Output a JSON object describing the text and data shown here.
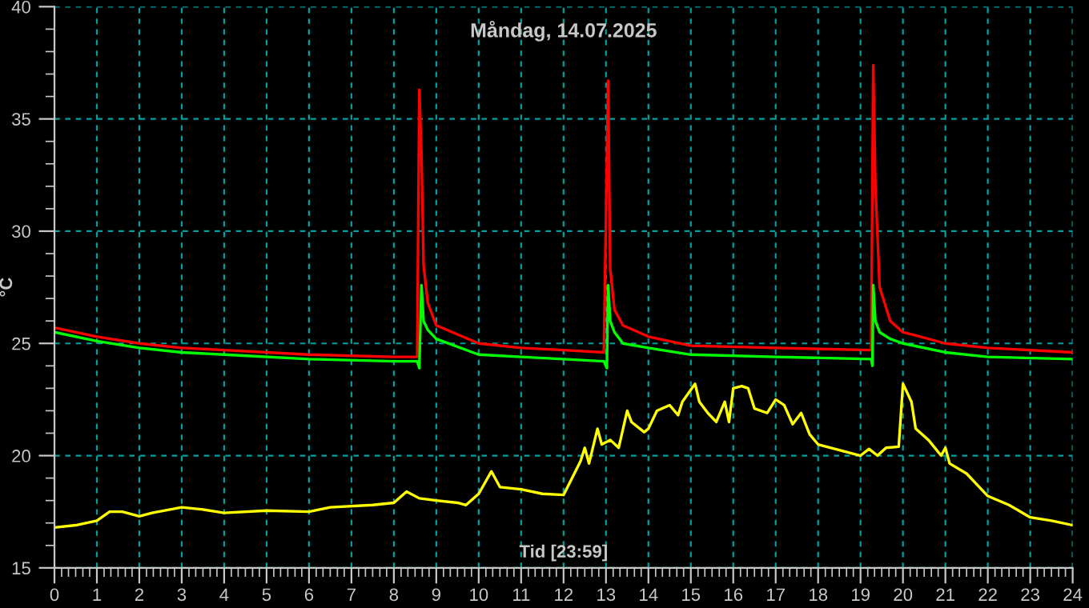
{
  "chart_data": {
    "type": "line",
    "title": "Måndag, 14.07.2025",
    "xlabel": "Tid [23:59]",
    "ylabel": "°C",
    "grid": true,
    "marker": "none",
    "line_style": "solid",
    "xlim": [
      0,
      24
    ],
    "ylim": [
      15,
      40
    ],
    "xticks": [
      0,
      {
        "value": 0.17,
        "label": null
      },
      {
        "value": 0.33,
        "label": null
      },
      {
        "value": 0.5,
        "label": null
      },
      {
        "value": 0.67,
        "label": null
      },
      {
        "value": 0.83,
        "label": null
      },
      1,
      {
        "value": 1.17,
        "label": null
      },
      {
        "value": 1.33,
        "label": null
      },
      {
        "value": 1.5,
        "label": null
      },
      {
        "value": 1.67,
        "label": null
      },
      {
        "value": 1.83,
        "label": null
      },
      2,
      {
        "value": 2.17,
        "label": null
      },
      {
        "value": 2.33,
        "label": null
      },
      {
        "value": 2.5,
        "label": null
      },
      {
        "value": 2.67,
        "label": null
      },
      {
        "value": 2.83,
        "label": null
      },
      3,
      {
        "value": 3.17,
        "label": null
      },
      {
        "value": 3.33,
        "label": null
      },
      {
        "value": 3.5,
        "label": null
      },
      {
        "value": 3.67,
        "label": null
      },
      {
        "value": 3.83,
        "label": null
      },
      4,
      {
        "value": 4.17,
        "label": null
      },
      {
        "value": 4.33,
        "label": null
      },
      {
        "value": 4.5,
        "label": null
      },
      {
        "value": 4.67,
        "label": null
      },
      {
        "value": 4.83,
        "label": null
      },
      5,
      {
        "value": 5.17,
        "label": null
      },
      {
        "value": 5.33,
        "label": null
      },
      {
        "value": 5.5,
        "label": null
      },
      {
        "value": 5.67,
        "label": null
      },
      {
        "value": 5.83,
        "label": null
      },
      6,
      {
        "value": 6.17,
        "label": null
      },
      {
        "value": 6.33,
        "label": null
      },
      {
        "value": 6.5,
        "label": null
      },
      {
        "value": 6.67,
        "label": null
      },
      {
        "value": 6.83,
        "label": null
      },
      7,
      {
        "value": 7.17,
        "label": null
      },
      {
        "value": 7.33,
        "label": null
      },
      {
        "value": 7.5,
        "label": null
      },
      {
        "value": 7.67,
        "label": null
      },
      {
        "value": 7.83,
        "label": null
      },
      8,
      {
        "value": 8.17,
        "label": null
      },
      {
        "value": 8.33,
        "label": null
      },
      {
        "value": 8.5,
        "label": null
      },
      {
        "value": 8.67,
        "label": null
      },
      {
        "value": 8.83,
        "label": null
      },
      9,
      {
        "value": 9.17,
        "label": null
      },
      {
        "value": 9.33,
        "label": null
      },
      {
        "value": 9.5,
        "label": null
      },
      {
        "value": 9.67,
        "label": null
      },
      {
        "value": 9.83,
        "label": null
      },
      10,
      {
        "value": 10.17,
        "label": null
      },
      {
        "value": 10.33,
        "label": null
      },
      {
        "value": 10.5,
        "label": null
      },
      {
        "value": 10.67,
        "label": null
      },
      {
        "value": 10.83,
        "label": null
      },
      11,
      {
        "value": 11.17,
        "label": null
      },
      {
        "value": 11.33,
        "label": null
      },
      {
        "value": 11.5,
        "label": null
      },
      {
        "value": 11.67,
        "label": null
      },
      {
        "value": 11.83,
        "label": null
      },
      12,
      {
        "value": 12.17,
        "label": null
      },
      {
        "value": 12.33,
        "label": null
      },
      {
        "value": 12.5,
        "label": null
      },
      {
        "value": 12.67,
        "label": null
      },
      {
        "value": 12.83,
        "label": null
      },
      13,
      {
        "value": 13.17,
        "label": null
      },
      {
        "value": 13.33,
        "label": null
      },
      {
        "value": 13.5,
        "label": null
      },
      {
        "value": 13.67,
        "label": null
      },
      {
        "value": 13.83,
        "label": null
      },
      14,
      {
        "value": 14.17,
        "label": null
      },
      {
        "value": 14.33,
        "label": null
      },
      {
        "value": 14.5,
        "label": null
      },
      {
        "value": 14.67,
        "label": null
      },
      {
        "value": 14.83,
        "label": null
      },
      15,
      {
        "value": 15.17,
        "label": null
      },
      {
        "value": 15.33,
        "label": null
      },
      {
        "value": 15.5,
        "label": null
      },
      {
        "value": 15.67,
        "label": null
      },
      {
        "value": 15.83,
        "label": null
      },
      16,
      {
        "value": 16.17,
        "label": null
      },
      {
        "value": 16.33,
        "label": null
      },
      {
        "value": 16.5,
        "label": null
      },
      {
        "value": 16.67,
        "label": null
      },
      {
        "value": 16.83,
        "label": null
      },
      17,
      {
        "value": 17.17,
        "label": null
      },
      {
        "value": 17.33,
        "label": null
      },
      {
        "value": 17.5,
        "label": null
      },
      {
        "value": 17.67,
        "label": null
      },
      {
        "value": 17.83,
        "label": null
      },
      18,
      {
        "value": 18.17,
        "label": null
      },
      {
        "value": 18.33,
        "label": null
      },
      {
        "value": 18.5,
        "label": null
      },
      {
        "value": 18.67,
        "label": null
      },
      {
        "value": 18.83,
        "label": null
      },
      19,
      {
        "value": 19.17,
        "label": null
      },
      {
        "value": 19.33,
        "label": null
      },
      {
        "value": 19.5,
        "label": null
      },
      {
        "value": 19.67,
        "label": null
      },
      {
        "value": 19.83,
        "label": null
      },
      20,
      {
        "value": 20.17,
        "label": null
      },
      {
        "value": 20.33,
        "label": null
      },
      {
        "value": 20.5,
        "label": null
      },
      {
        "value": 20.67,
        "label": null
      },
      {
        "value": 20.83,
        "label": null
      },
      21,
      {
        "value": 21.17,
        "label": null
      },
      {
        "value": 21.33,
        "label": null
      },
      {
        "value": 21.5,
        "label": null
      },
      {
        "value": 21.67,
        "label": null
      },
      {
        "value": 21.83,
        "label": null
      },
      22,
      {
        "value": 22.17,
        "label": null
      },
      {
        "value": 22.33,
        "label": null
      },
      {
        "value": 22.5,
        "label": null
      },
      {
        "value": 22.67,
        "label": null
      },
      {
        "value": 22.83,
        "label": null
      },
      23,
      {
        "value": 23.17,
        "label": null
      },
      {
        "value": 23.33,
        "label": null
      },
      {
        "value": 23.5,
        "label": null
      },
      {
        "value": 23.67,
        "label": null
      },
      {
        "value": 23.83,
        "label": null
      },
      24
    ],
    "yticks": [
      15,
      {
        "value": 16,
        "label": null
      },
      {
        "value": 17,
        "label": null
      },
      {
        "value": 18,
        "label": null
      },
      {
        "value": 19,
        "label": null
      },
      20,
      {
        "value": 21,
        "label": null
      },
      {
        "value": 22,
        "label": null
      },
      {
        "value": 23,
        "label": null
      },
      {
        "value": 24,
        "label": null
      },
      25,
      {
        "value": 26,
        "label": null
      },
      {
        "value": 27,
        "label": null
      },
      {
        "value": 28,
        "label": null
      },
      {
        "value": 29,
        "label": null
      },
      30,
      {
        "value": 31,
        "label": null
      },
      {
        "value": 32,
        "label": null
      },
      {
        "value": 33,
        "label": null
      },
      {
        "value": 34,
        "label": null
      },
      35,
      {
        "value": 36,
        "label": null
      },
      {
        "value": 37,
        "label": null
      },
      {
        "value": 38,
        "label": null
      },
      {
        "value": 39,
        "label": null
      },
      40
    ],
    "series": [
      {
        "color": "#ff0000",
        "x": [
          0,
          1,
          2,
          3,
          4,
          6,
          8,
          8.55,
          8.6,
          8.65,
          8.7,
          8.8,
          9,
          10,
          11,
          12,
          12.95,
          13.05,
          13.1,
          13.2,
          13.4,
          14,
          15,
          17,
          19.25,
          19.3,
          19.35,
          19.45,
          19.7,
          20,
          21,
          22,
          24
        ],
        "values": [
          25.7,
          25.3,
          25.0,
          24.8,
          24.7,
          24.5,
          24.4,
          24.4,
          36.3,
          33.5,
          28.5,
          26.8,
          25.8,
          25.0,
          24.8,
          24.7,
          24.6,
          36.7,
          28.3,
          26.5,
          25.8,
          25.3,
          24.9,
          24.8,
          24.7,
          37.4,
          32.1,
          27.5,
          26.0,
          25.5,
          25.0,
          24.8,
          24.6
        ]
      },
      {
        "color": "#00ff00",
        "x": [
          0,
          1,
          2,
          3,
          4,
          6,
          8,
          8.55,
          8.6,
          8.65,
          8.7,
          8.8,
          9,
          10,
          11,
          12,
          12.95,
          13.02,
          13.05,
          13.1,
          13.2,
          13.4,
          14,
          15,
          17,
          19.25,
          19.28,
          19.3,
          19.35,
          19.45,
          19.7,
          20,
          21,
          22,
          24
        ],
        "values": [
          25.5,
          25.1,
          24.8,
          24.6,
          24.5,
          24.3,
          24.2,
          24.2,
          23.9,
          27.6,
          26.0,
          25.6,
          25.2,
          24.5,
          24.4,
          24.3,
          24.2,
          23.9,
          27.6,
          26.0,
          25.5,
          25.0,
          24.8,
          24.5,
          24.4,
          24.3,
          24.0,
          27.6,
          26.0,
          25.5,
          25.2,
          25.0,
          24.6,
          24.4,
          24.3
        ]
      },
      {
        "color": "#ffff00",
        "x": [
          0,
          0.5,
          1,
          1.3,
          1.6,
          2,
          2.3,
          3,
          3.5,
          4,
          5,
          6,
          6.5,
          7.5,
          8,
          8.3,
          8.6,
          9,
          9.5,
          9.7,
          10,
          10.3,
          10.5,
          11,
          11.5,
          12,
          12.4,
          12.5,
          12.6,
          12.8,
          12.9,
          13.1,
          13.3,
          13.5,
          13.6,
          13.9,
          14,
          14.2,
          14.5,
          14.7,
          14.8,
          15.1,
          15.2,
          15.4,
          15.6,
          15.8,
          15.9,
          16,
          16.2,
          16.35,
          16.5,
          16.8,
          17,
          17.2,
          17.4,
          17.6,
          17.8,
          18,
          18.5,
          19,
          19.2,
          19.4,
          19.6,
          19.9,
          20,
          20.2,
          20.3,
          20.6,
          20.9,
          21,
          21.1,
          21.5,
          22,
          22.5,
          23,
          23.5,
          24
        ],
        "values": [
          16.8,
          16.9,
          17.1,
          17.5,
          17.5,
          17.3,
          17.45,
          17.7,
          17.6,
          17.45,
          17.55,
          17.5,
          17.7,
          17.8,
          17.9,
          18.4,
          18.1,
          18.0,
          17.9,
          17.8,
          18.3,
          19.3,
          18.6,
          18.5,
          18.3,
          18.25,
          19.75,
          20.35,
          19.65,
          21.2,
          20.5,
          20.7,
          20.35,
          22.0,
          21.5,
          21.05,
          21.2,
          22.0,
          22.25,
          21.8,
          22.4,
          23.2,
          22.4,
          21.9,
          21.5,
          22.4,
          21.5,
          23.0,
          23.1,
          23.0,
          22.1,
          21.9,
          22.5,
          22.25,
          21.4,
          21.9,
          20.95,
          20.5,
          20.25,
          20.0,
          20.3,
          20.0,
          20.35,
          20.4,
          23.2,
          22.4,
          21.2,
          20.7,
          20.0,
          20.35,
          19.65,
          19.2,
          18.2,
          17.8,
          17.25,
          17.1,
          16.9
        ]
      }
    ]
  }
}
